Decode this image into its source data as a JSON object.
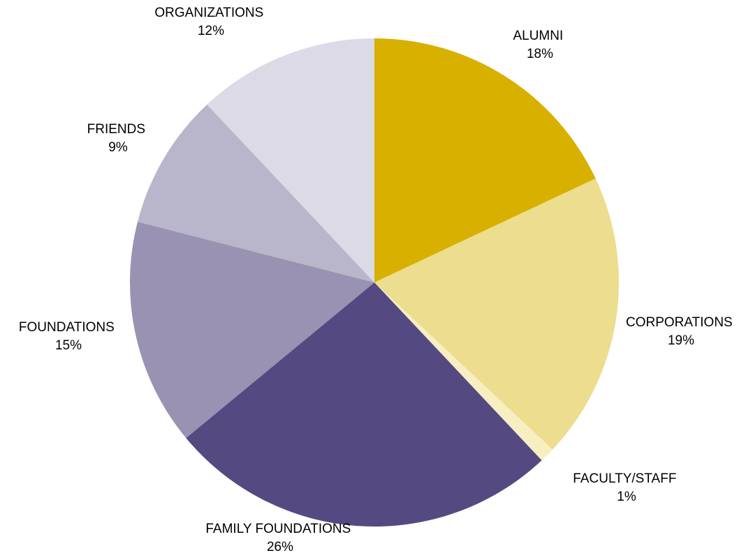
{
  "chart_data": {
    "type": "pie",
    "slices": [
      {
        "label": "ALUMNI",
        "value": 18,
        "pct_label": "18%",
        "color": "#d7b000"
      },
      {
        "label": "CORPORATIONS",
        "value": 19,
        "pct_label": "19%",
        "color": "#ecdd8f"
      },
      {
        "label": "FACULTY/STAFF",
        "value": 1,
        "pct_label": "1%",
        "color": "#f7eec2"
      },
      {
        "label": "FAMILY FOUNDATIONS",
        "value": 26,
        "pct_label": "26%",
        "color": "#554981"
      },
      {
        "label": "FOUNDATIONS",
        "value": 15,
        "pct_label": "15%",
        "color": "#9a92b2"
      },
      {
        "label": "FRIENDS",
        "value": 9,
        "pct_label": "9%",
        "color": "#b9b5ca"
      },
      {
        "label": "ORGANIZATIONS",
        "value": 12,
        "pct_label": "12%",
        "color": "#dcdae6"
      }
    ]
  }
}
